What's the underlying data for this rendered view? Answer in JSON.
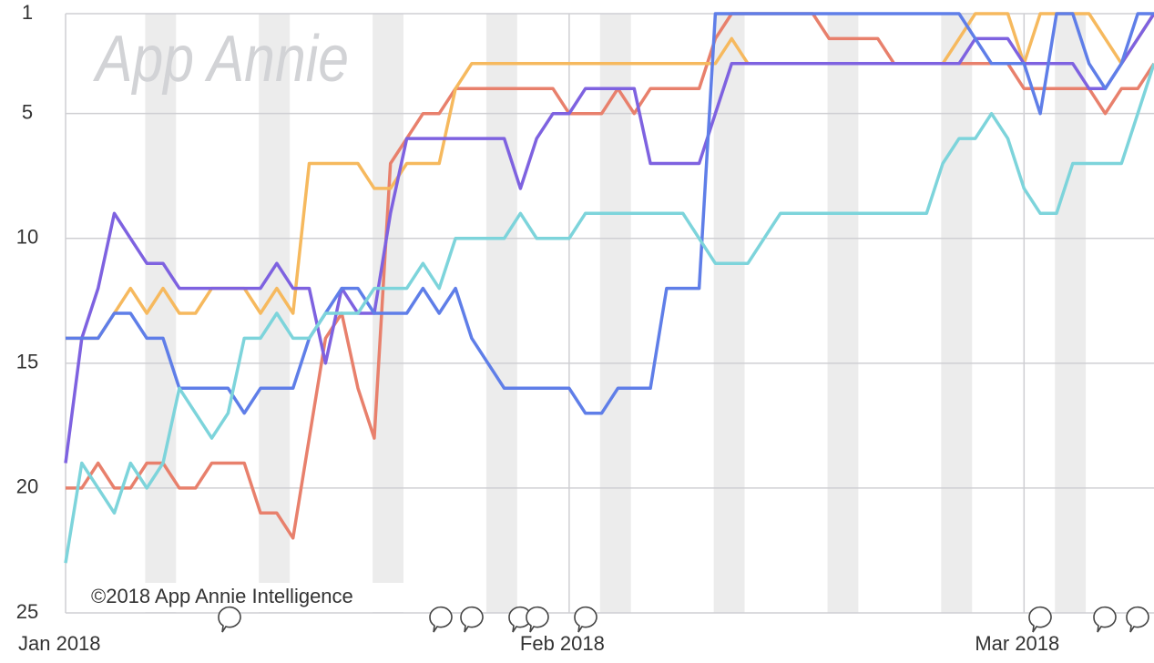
{
  "chart_data": {
    "type": "line",
    "watermark": "App Annie",
    "annotation": "©2018 App Annie Intelligence",
    "categories": [
      "Jan 2018",
      null,
      null,
      null,
      null,
      null,
      null,
      null,
      null,
      null,
      null,
      null,
      null,
      null,
      null,
      null,
      null,
      null,
      null,
      null,
      null,
      null,
      null,
      null,
      null,
      null,
      null,
      null,
      null,
      null,
      null,
      "Feb 2018",
      null,
      null,
      null,
      null,
      null,
      null,
      null,
      null,
      null,
      null,
      null,
      null,
      null,
      null,
      null,
      null,
      null,
      null,
      null,
      null,
      null,
      null,
      null,
      null,
      null,
      null,
      null,
      "Mar 2018",
      null,
      null,
      null,
      null,
      null,
      null,
      null,
      null
    ],
    "series": [
      {
        "color": "#e8806c",
        "values": [
          20,
          20,
          19,
          20,
          20,
          19,
          19,
          20,
          20,
          19,
          19,
          19,
          21,
          21,
          22,
          18,
          14,
          13,
          16,
          18,
          7,
          6,
          5,
          5,
          4,
          4,
          4,
          4,
          4,
          4,
          4,
          5,
          5,
          5,
          4,
          5,
          4,
          4,
          4,
          4,
          2,
          1,
          1,
          1,
          1,
          1,
          1,
          2,
          2,
          2,
          2,
          3,
          3,
          3,
          3,
          3,
          3,
          3,
          3,
          4,
          4,
          4,
          4,
          4,
          5,
          4,
          4,
          3
        ]
      },
      {
        "color": "#f6b95e",
        "values": [
          14,
          14,
          14,
          13,
          12,
          13,
          12,
          13,
          13,
          12,
          12,
          12,
          13,
          12,
          13,
          7,
          7,
          7,
          7,
          8,
          8,
          7,
          7,
          7,
          4,
          3,
          3,
          3,
          3,
          3,
          3,
          3,
          3,
          3,
          3,
          3,
          3,
          3,
          3,
          3,
          3,
          2,
          3,
          3,
          3,
          3,
          3,
          3,
          3,
          3,
          3,
          3,
          3,
          3,
          3,
          2,
          1,
          1,
          1,
          3,
          1,
          1,
          1,
          1,
          2,
          3,
          2,
          1
        ]
      },
      {
        "color": "#7e62e0",
        "values": [
          19,
          14,
          12,
          9,
          10,
          11,
          11,
          12,
          12,
          12,
          12,
          12,
          12,
          11,
          12,
          12,
          15,
          12,
          13,
          13,
          9,
          6,
          6,
          6,
          6,
          6,
          6,
          6,
          8,
          6,
          5,
          5,
          4,
          4,
          4,
          4,
          7,
          7,
          7,
          7,
          5,
          3,
          3,
          3,
          3,
          3,
          3,
          3,
          3,
          3,
          3,
          3,
          3,
          3,
          3,
          3,
          2,
          2,
          2,
          3,
          3,
          3,
          3,
          4,
          4,
          3,
          2,
          1
        ]
      },
      {
        "color": "#5f7ee8",
        "values": [
          14,
          14,
          14,
          13,
          13,
          14,
          14,
          16,
          16,
          16,
          16,
          17,
          16,
          16,
          16,
          14,
          13,
          12,
          12,
          13,
          13,
          13,
          12,
          13,
          12,
          14,
          15,
          16,
          16,
          16,
          16,
          16,
          17,
          17,
          16,
          16,
          16,
          12,
          12,
          12,
          1,
          1,
          1,
          1,
          1,
          1,
          1,
          1,
          1,
          1,
          1,
          1,
          1,
          1,
          1,
          1,
          2,
          3,
          3,
          3,
          5,
          1,
          1,
          3,
          4,
          3,
          1,
          1
        ]
      },
      {
        "color": "#7dd4db",
        "values": [
          23,
          19,
          20,
          21,
          19,
          20,
          19,
          16,
          17,
          18,
          17,
          14,
          14,
          13,
          14,
          14,
          13,
          13,
          13,
          12,
          12,
          12,
          11,
          12,
          10,
          10,
          10,
          10,
          9,
          10,
          10,
          10,
          9,
          9,
          9,
          9,
          9,
          9,
          9,
          10,
          11,
          11,
          11,
          10,
          9,
          9,
          9,
          9,
          9,
          9,
          9,
          9,
          9,
          9,
          7,
          6,
          6,
          5,
          6,
          8,
          9,
          9,
          7,
          7,
          7,
          7,
          5,
          3
        ]
      }
    ],
    "ylim": [
      1,
      25
    ],
    "invert_y": true,
    "yticks": [
      1,
      5,
      10,
      15,
      20,
      25
    ],
    "grid": true
  }
}
